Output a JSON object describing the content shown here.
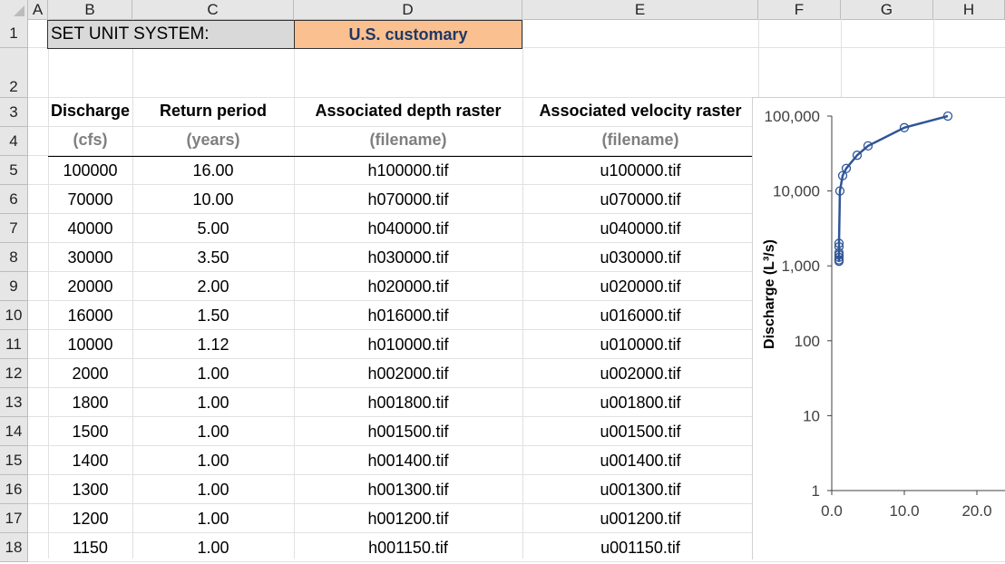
{
  "columns": [
    "A",
    "B",
    "C",
    "D",
    "E",
    "F",
    "G",
    "H"
  ],
  "rows": [
    "1",
    "2",
    "3",
    "4",
    "5",
    "6",
    "7",
    "8",
    "9",
    "10",
    "11",
    "12",
    "13",
    "14",
    "15",
    "16",
    "17",
    "18"
  ],
  "unit_system": {
    "label": "SET UNIT SYSTEM:",
    "value": "U.S. customary"
  },
  "table": {
    "headers": [
      "Discharge",
      "Return period",
      "Associated depth raster",
      "Associated velocity raster"
    ],
    "units": [
      "(cfs)",
      "(years)",
      "(filename)",
      "(filename)"
    ],
    "rows": [
      [
        "100000",
        "16.00",
        "h100000.tif",
        "u100000.tif"
      ],
      [
        "70000",
        "10.00",
        "h070000.tif",
        "u070000.tif"
      ],
      [
        "40000",
        "5.00",
        "h040000.tif",
        "u040000.tif"
      ],
      [
        "30000",
        "3.50",
        "h030000.tif",
        "u030000.tif"
      ],
      [
        "20000",
        "2.00",
        "h020000.tif",
        "u020000.tif"
      ],
      [
        "16000",
        "1.50",
        "h016000.tif",
        "u016000.tif"
      ],
      [
        "10000",
        "1.12",
        "h010000.tif",
        "u010000.tif"
      ],
      [
        "2000",
        "1.00",
        "h002000.tif",
        "u002000.tif"
      ],
      [
        "1800",
        "1.00",
        "h001800.tif",
        "u001800.tif"
      ],
      [
        "1500",
        "1.00",
        "h001500.tif",
        "u001500.tif"
      ],
      [
        "1400",
        "1.00",
        "h001400.tif",
        "u001400.tif"
      ],
      [
        "1300",
        "1.00",
        "h001300.tif",
        "u001300.tif"
      ],
      [
        "1200",
        "1.00",
        "h001200.tif",
        "u001200.tif"
      ],
      [
        "1150",
        "1.00",
        "h001150.tif",
        "u001150.tif"
      ]
    ]
  },
  "chart_data": {
    "type": "scatter",
    "title": "",
    "ylabel": "Discharge (L³/s)",
    "xlabel": "",
    "y_scale": "log",
    "ylim": [
      1,
      100000
    ],
    "xlim": [
      0,
      20
    ],
    "y_ticks": [
      "1",
      "10",
      "100",
      "1,000",
      "10,000",
      "100,000"
    ],
    "x_ticks": [
      "0.0",
      "10.0",
      "20.0"
    ],
    "series_color": "#2f5597",
    "marker": "open-circle",
    "series": [
      {
        "x": [
          16,
          10,
          5,
          3.5,
          2,
          1.5,
          1.12,
          1,
          1,
          1,
          1,
          1,
          1,
          1
        ],
        "y": [
          100000,
          70000,
          40000,
          30000,
          20000,
          16000,
          10000,
          2000,
          1800,
          1500,
          1400,
          1300,
          1200,
          1150
        ]
      }
    ]
  }
}
